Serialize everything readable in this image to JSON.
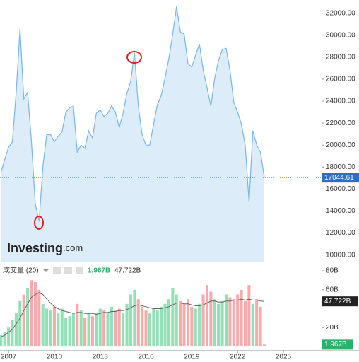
{
  "brand": {
    "name": "Investing",
    "suffix": ".com"
  },
  "chart_data": {
    "type": "area",
    "x": [
      2006.5,
      2006.75,
      2007,
      2007.25,
      2007.5,
      2007.75,
      2008,
      2008.25,
      2008.5,
      2008.75,
      2009,
      2009.25,
      2009.5,
      2009.75,
      2010,
      2010.25,
      2010.5,
      2010.75,
      2011,
      2011.25,
      2011.5,
      2011.75,
      2012,
      2012.25,
      2012.5,
      2012.75,
      2013,
      2013.25,
      2013.5,
      2013.75,
      2014,
      2014.25,
      2014.5,
      2014.75,
      2015,
      2015.25,
      2015.5,
      2015.75,
      2016,
      2016.25,
      2016.5,
      2016.75,
      2017,
      2017.25,
      2017.5,
      2017.75,
      2018,
      2018.25,
      2018.5,
      2018.75,
      2019,
      2019.25,
      2019.5,
      2019.75,
      2020,
      2020.25,
      2020.5,
      2020.75,
      2021,
      2021.25,
      2021.5,
      2021.75,
      2022,
      2022.25,
      2022.5,
      2022.75,
      2023,
      2023.25,
      2023.5,
      2023.75
    ],
    "xlim": [
      2006.44,
      2027.5
    ],
    "xticks": [
      2007,
      2010,
      2013,
      2016,
      2019,
      2022,
      2025
    ],
    "ylim": [
      9400,
      33200
    ],
    "yticks": [
      {
        "value": 10000,
        "label": "10000.00"
      },
      {
        "value": 12000,
        "label": "12000.00"
      },
      {
        "value": 14000,
        "label": "14000.00"
      },
      {
        "value": 16000,
        "label": "16000.00"
      },
      {
        "value": 18000,
        "label": "18000.00"
      },
      {
        "value": 20000,
        "label": "20000.00"
      },
      {
        "value": 22000,
        "label": "22000.00"
      },
      {
        "value": 24000,
        "label": "24000.00"
      },
      {
        "value": 26000,
        "label": "26000.00"
      },
      {
        "value": 28000,
        "label": "28000.00"
      },
      {
        "value": 30000,
        "label": "30000.00"
      },
      {
        "value": 32000,
        "label": "32000.00"
      }
    ],
    "y2lim": [
      0,
      86
    ],
    "y2ticks": [
      {
        "value": 20,
        "label": "20B"
      },
      {
        "value": 60,
        "label": "60B"
      },
      {
        "value": 80,
        "label": "80B"
      }
    ],
    "grid": false,
    "up_color": "#92e0b6",
    "down_color": "#f5abab",
    "series": [
      {
        "color": "#7cb5e6",
        "fill": "#dcecf8",
        "values": [
          17500,
          18700,
          19800,
          20300,
          24800,
          30600,
          24200,
          24800,
          20300,
          14650,
          13100,
          18050,
          20950,
          20950,
          20300,
          20800,
          21200,
          23000,
          23400,
          23550,
          19350,
          20000,
          19700,
          21300,
          20650,
          22900,
          23200,
          22600,
          22900,
          23550,
          23000,
          21600,
          22900,
          24700,
          25800,
          28400,
          23550,
          20950,
          20000,
          20000,
          21900,
          23700,
          24500,
          26100,
          27900,
          30100,
          32600,
          30300,
          30100,
          27400,
          27100,
          28200,
          29200,
          26800,
          25200,
          23550,
          26100,
          27700,
          28700,
          28800,
          26800,
          23900,
          23000,
          21900,
          20000,
          14800,
          21300,
          20000,
          19350,
          17044.61
        ]
      },
      {
        "name": "成交量 (20)",
        "type": "bar",
        "axis": "y2",
        "values": [
          12,
          15,
          20,
          28,
          35,
          48,
          55,
          62,
          70,
          68,
          60,
          45,
          40,
          38,
          42,
          35,
          40,
          30,
          32,
          35,
          45,
          38,
          30,
          35,
          32,
          36,
          40,
          38,
          35,
          42,
          38,
          40,
          35,
          45,
          55,
          60,
          50,
          42,
          38,
          35,
          40,
          38,
          42,
          45,
          50,
          62,
          55,
          48,
          45,
          50,
          42,
          40,
          45,
          55,
          65,
          58,
          50,
          45,
          48,
          55,
          52,
          50,
          55,
          60,
          48,
          65,
          45,
          50,
          42,
          1.967
        ],
        "value_labels": [
          null,
          null,
          null,
          null,
          null,
          null,
          null,
          null,
          null,
          null,
          null,
          null,
          null,
          null,
          null,
          null,
          null,
          null,
          null,
          null,
          null,
          null,
          null,
          null,
          null,
          null,
          null,
          null,
          null,
          null,
          null,
          null,
          null,
          null,
          null,
          null,
          null,
          null,
          null,
          null,
          null,
          null,
          null,
          null,
          null,
          null,
          null,
          null,
          null,
          null,
          null,
          null,
          null,
          null,
          null,
          null,
          null,
          null,
          null,
          null,
          null,
          null,
          null,
          null,
          null,
          null,
          null,
          null,
          null,
          "1.967B"
        ]
      },
      {
        "type": "line",
        "axis": "y2",
        "color": "#666666",
        "values": [
          10,
          12,
          15,
          18,
          24,
          30,
          38,
          45,
          52,
          55,
          57,
          55,
          50,
          46,
          42,
          40,
          38,
          37,
          36,
          35,
          36,
          36,
          35,
          35,
          35,
          34,
          35,
          36,
          36,
          37,
          37,
          38,
          38,
          39,
          41,
          43,
          44,
          43,
          42,
          41,
          40,
          40,
          40,
          41,
          42,
          44,
          46,
          46,
          45,
          45,
          44,
          43,
          43,
          44,
          46,
          48,
          48,
          47,
          47,
          48,
          48,
          49,
          49,
          50,
          49,
          50,
          49,
          49,
          48,
          47.722
        ],
        "value_labels": [
          null,
          null,
          null,
          null,
          null,
          null,
          null,
          null,
          null,
          null,
          null,
          null,
          null,
          null,
          null,
          null,
          null,
          null,
          null,
          null,
          null,
          null,
          null,
          null,
          null,
          null,
          null,
          null,
          null,
          null,
          null,
          null,
          null,
          null,
          null,
          null,
          null,
          null,
          null,
          null,
          null,
          null,
          null,
          null,
          null,
          null,
          null,
          null,
          null,
          null,
          null,
          null,
          null,
          null,
          null,
          null,
          null,
          null,
          null,
          null,
          null,
          null,
          null,
          null,
          null,
          null,
          null,
          null,
          null,
          "47.722B"
        ]
      }
    ]
  }
}
